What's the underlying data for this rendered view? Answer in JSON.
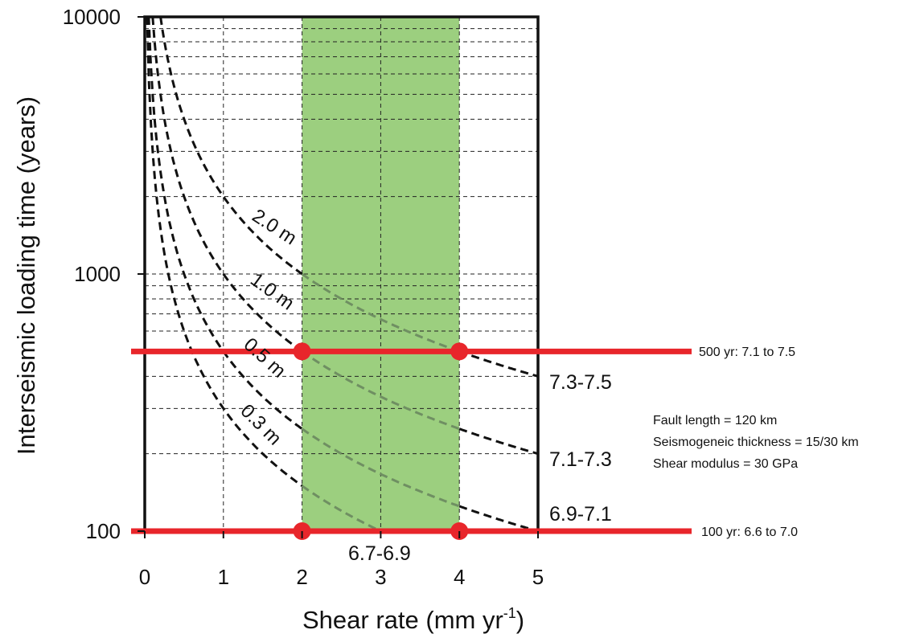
{
  "chart_data": {
    "type": "line",
    "title": "",
    "xlabel": "Shear rate (mm yr",
    "xlabel_sup": "-1",
    "xlabel_end": ")",
    "ylabel": "Interseismic loading  time (years)",
    "xlim": [
      0,
      5
    ],
    "ylim": [
      100,
      10000
    ],
    "yscale": "log",
    "grid": true,
    "x_ticks": [
      "0",
      "1",
      "2",
      "3",
      "4",
      "5"
    ],
    "y_ticks": [
      "100",
      "1000",
      "10000"
    ],
    "shaded_band": {
      "x": [
        2,
        4
      ],
      "color": "#9ccf7f"
    },
    "series": [
      {
        "name": "2.0 m",
        "slip_m": 2.0,
        "label_angle": 33,
        "points": [
          [
            0.2,
            10000
          ],
          [
            0.5,
            4000
          ],
          [
            1,
            2000
          ],
          [
            2,
            1000
          ],
          [
            3,
            667
          ],
          [
            4,
            500
          ],
          [
            5,
            400
          ]
        ]
      },
      {
        "name": "1.0 m",
        "slip_m": 1.0,
        "label_angle": 36,
        "points": [
          [
            0.1,
            10000
          ],
          [
            0.25,
            4000
          ],
          [
            0.5,
            2000
          ],
          [
            1,
            1000
          ],
          [
            2,
            500
          ],
          [
            3,
            333
          ],
          [
            4,
            250
          ],
          [
            5,
            200
          ]
        ]
      },
      {
        "name": "0.5 m",
        "slip_m": 0.5,
        "label_angle": 42,
        "points": [
          [
            0.05,
            10000
          ],
          [
            0.25,
            2000
          ],
          [
            0.5,
            1000
          ],
          [
            1,
            500
          ],
          [
            2,
            250
          ],
          [
            3,
            167
          ],
          [
            4,
            125
          ],
          [
            5,
            100
          ]
        ]
      },
      {
        "name": "0.3 m",
        "slip_m": 0.3,
        "label_angle": 45,
        "points": [
          [
            0.03,
            10000
          ],
          [
            0.3,
            1000
          ],
          [
            0.6,
            500
          ],
          [
            1,
            300
          ],
          [
            2,
            150
          ],
          [
            3,
            100
          ]
        ]
      }
    ],
    "magnitude_labels": [
      "7.3-7.5",
      "7.1-7.3",
      "6.9-7.1",
      "6.7-6.9"
    ],
    "reference_lines": [
      {
        "y": 500,
        "label": "500 yr: 7.1 to 7.5",
        "color": "#e8262b"
      },
      {
        "y": 100,
        "label": "100 yr: 6.6 to 7.0",
        "color": "#e8262b"
      }
    ],
    "markers": [
      [
        2,
        500
      ],
      [
        4,
        500
      ],
      [
        2,
        100
      ],
      [
        4,
        100
      ]
    ],
    "annotations": [
      "Fault length = 120 km",
      "Seismogeneic thickness = 15/30 km",
      "Shear modulus = 30 GPa"
    ]
  }
}
